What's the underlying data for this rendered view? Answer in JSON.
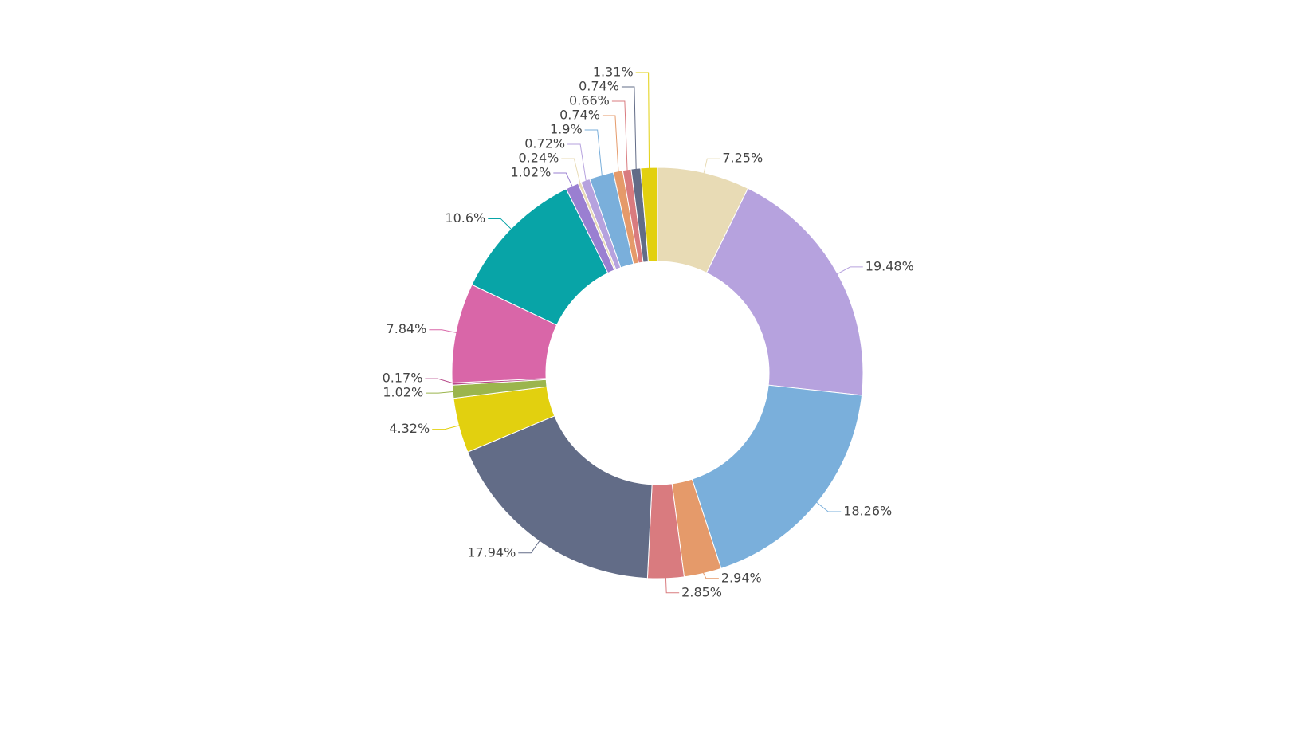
{
  "chart_data": {
    "type": "donut",
    "values": [
      7.25,
      19.48,
      18.26,
      2.94,
      2.85,
      17.94,
      4.32,
      1.02,
      0.17,
      7.84,
      10.6,
      1.02,
      0.24,
      0.72,
      1.9,
      0.74,
      0.66,
      0.74,
      1.31
    ],
    "value_labels": [
      "7.25%",
      "19.48%",
      "18.26%",
      "2.94%",
      "2.85%",
      "17.94%",
      "4.32%",
      "1.02%",
      "0.17%",
      "7.84%",
      "10.6%",
      "1.02%",
      "0.24%",
      "0.72%",
      "1.9%",
      "0.74%",
      "0.66%",
      "0.74%",
      "1.31%"
    ],
    "colors": [
      "#e8dbb5",
      "#b6a2de",
      "#7aafdb",
      "#e59a6a",
      "#d97b7f",
      "#626c87",
      "#e2d00f",
      "#9bb54d",
      "#b74a8a",
      "#d966a8",
      "#08a4a7",
      "#9a7fd1",
      "#e8dbb5",
      "#b6a2de",
      "#7aafdb",
      "#e59a6a",
      "#d97b7f",
      "#626c87",
      "#e2d00f"
    ]
  }
}
